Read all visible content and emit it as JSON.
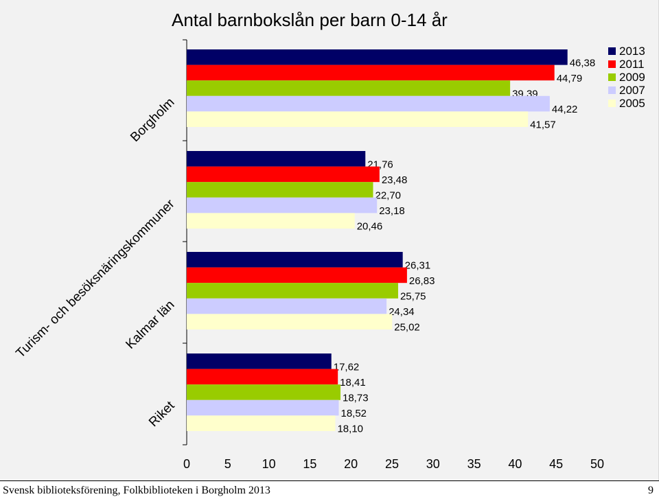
{
  "chart_data": {
    "type": "bar",
    "orientation": "horizontal",
    "title": "Antal barnbokslån per barn 0-14 år",
    "categories": [
      "Borgholm",
      "Turism- och besöksnäringskommuner",
      "Kalmar län",
      "Riket"
    ],
    "series": [
      {
        "name": "2013",
        "color": "#000066",
        "values": [
          46.38,
          21.76,
          26.31,
          17.62
        ],
        "labels": [
          "46,38",
          "21,76",
          "26,31",
          "17,62"
        ]
      },
      {
        "name": "2011",
        "color": "#ff0000",
        "values": [
          44.79,
          23.48,
          26.83,
          18.41
        ],
        "labels": [
          "44,79",
          "23,48",
          "26,83",
          "18,41"
        ]
      },
      {
        "name": "2009",
        "color": "#99cc00",
        "values": [
          39.39,
          22.7,
          25.75,
          18.73
        ],
        "labels": [
          "39,39",
          "22,70",
          "25,75",
          "18,73"
        ]
      },
      {
        "name": "2007",
        "color": "#ccccff",
        "values": [
          44.22,
          23.18,
          24.34,
          18.52
        ],
        "labels": [
          "44,22",
          "23,18",
          "24,34",
          "18,52"
        ]
      },
      {
        "name": "2005",
        "color": "#ffffcc",
        "values": [
          41.57,
          20.46,
          25.02,
          18.1
        ],
        "labels": [
          "41,57",
          "20,46",
          "25,02",
          "18,10"
        ]
      }
    ],
    "xlim": [
      0,
      50
    ],
    "xticks": [
      "0",
      "5",
      "10",
      "15",
      "20",
      "25",
      "30",
      "35",
      "40",
      "45",
      "50"
    ],
    "legend_position": "top-right",
    "grid": false
  },
  "footer": {
    "text": "Svensk biblioteksförening, Folkbiblioteken i Borgholm 2013",
    "page_number": "9"
  }
}
